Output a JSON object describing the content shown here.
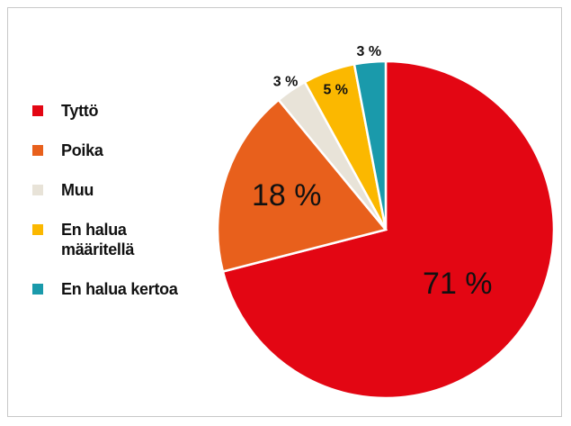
{
  "chart_data": {
    "type": "pie",
    "categories": [
      "Tyttö",
      "Poika",
      "Muu",
      "En halua määritellä",
      "En halua kertoa"
    ],
    "values": [
      71,
      18,
      3,
      5,
      3
    ],
    "value_labels": [
      "71 %",
      "18 %",
      "3 %",
      "5 %",
      "3 %"
    ],
    "colors": [
      "#e30613",
      "#e8601c",
      "#e8e3d8",
      "#fbb800",
      "#1a9aab"
    ],
    "legend": "left"
  }
}
